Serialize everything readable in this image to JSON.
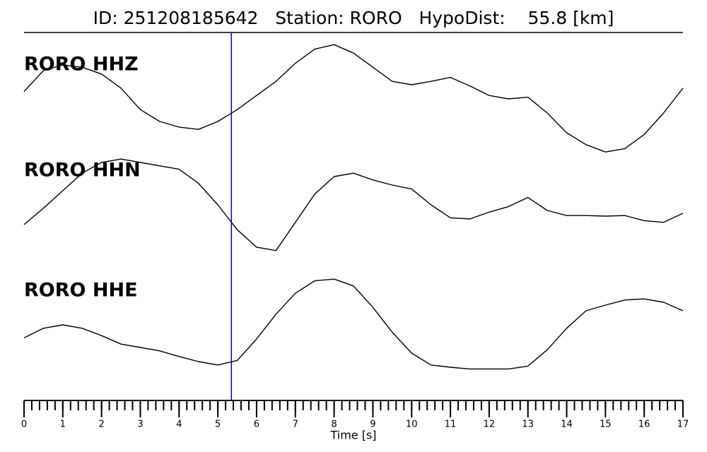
{
  "chart_data": {
    "type": "line",
    "title": "ID: 251208185642   Station: RORO   HypoDist:    55.8 [km]",
    "xlabel": "Time [s]",
    "x": [
      0,
      0.5,
      1,
      1.5,
      2,
      2.5,
      3,
      3.5,
      4,
      4.5,
      5,
      5.5,
      6,
      6.5,
      7,
      7.5,
      8,
      8.5,
      9,
      9.5,
      10,
      10.5,
      11,
      11.5,
      12,
      12.5,
      13,
      13.5,
      14,
      14.5,
      15,
      15.5,
      16,
      16.5,
      17
    ],
    "xlim": [
      0,
      17
    ],
    "xticks": [
      0,
      1,
      2,
      3,
      4,
      5,
      6,
      7,
      8,
      9,
      10,
      11,
      12,
      13,
      14,
      15,
      16,
      17
    ],
    "minor_tick_step": 0.2,
    "ylim": [
      -1,
      1
    ],
    "pick_x": 5.35,
    "pick_color": "#0000cc",
    "label_color": "#4e9a06",
    "series": [
      {
        "name": "RORO HHZ",
        "color": "#000000",
        "values": [
          0.13,
          0.5,
          0.6,
          0.56,
          0.44,
          0.19,
          -0.19,
          -0.4,
          -0.5,
          -0.54,
          -0.4,
          -0.19,
          0.06,
          0.31,
          0.63,
          0.88,
          0.96,
          0.81,
          0.56,
          0.31,
          0.25,
          0.31,
          0.38,
          0.23,
          0.06,
          0,
          0.03,
          -0.25,
          -0.6,
          -0.81,
          -0.94,
          -0.88,
          -0.63,
          -0.25,
          0.19
        ]
      },
      {
        "name": "RORO HHN",
        "color": "#000000",
        "values": [
          -0.35,
          -0.06,
          0.25,
          0.56,
          0.75,
          0.81,
          0.75,
          0.69,
          0.63,
          0.38,
          0,
          -0.44,
          -0.75,
          -0.81,
          -0.31,
          0.19,
          0.5,
          0.56,
          0.44,
          0.35,
          0.28,
          0,
          -0.23,
          -0.25,
          -0.13,
          -0.03,
          0.13,
          -0.1,
          -0.19,
          -0.19,
          -0.2,
          -0.19,
          -0.28,
          -0.31,
          -0.15
        ]
      },
      {
        "name": "RORO HHE",
        "color": "#000000",
        "values": [
          -0.23,
          -0.06,
          0,
          -0.06,
          -0.19,
          -0.34,
          -0.4,
          -0.46,
          -0.56,
          -0.65,
          -0.71,
          -0.63,
          -0.25,
          0.19,
          0.56,
          0.78,
          0.81,
          0.69,
          0.31,
          -0.13,
          -0.5,
          -0.71,
          -0.75,
          -0.78,
          -0.78,
          -0.78,
          -0.73,
          -0.44,
          -0.06,
          0.25,
          0.35,
          0.44,
          0.46,
          0.4,
          0.25
        ]
      }
    ]
  }
}
